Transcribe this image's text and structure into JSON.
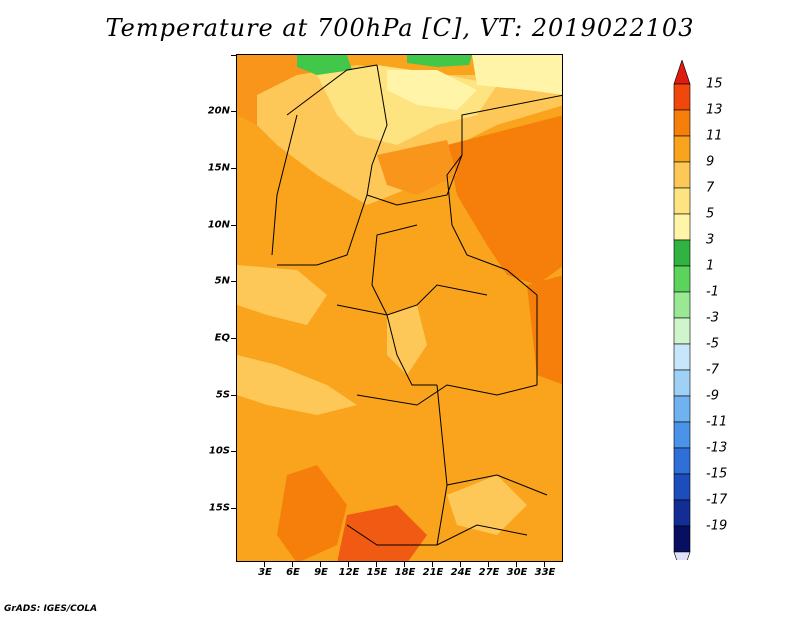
{
  "title": "Temperature at 700hPa [C], VT: 2019022103",
  "credit": "GrADS: IGES/COLA",
  "map": {
    "lat_labels": [
      "20N",
      "15N",
      "10N",
      "5N",
      "EQ",
      "5S",
      "10S",
      "15S"
    ],
    "lon_labels": [
      "3E",
      "6E",
      "9E",
      "12E",
      "15E",
      "18E",
      "21E",
      "24E",
      "27E",
      "30E",
      "33E"
    ],
    "field_colors": {
      "green": "#41c84a",
      "pale_yellow": "#fff4a8",
      "light_yellow": "#fee381",
      "light_orange": "#fdc857",
      "orange": "#f9a41c",
      "dark_orange": "#f67f0b",
      "red_orange": "#f05a12"
    }
  },
  "colorbar": {
    "labels": [
      "15",
      "13",
      "11",
      "9",
      "7",
      "5",
      "3",
      "1",
      "-1",
      "-3",
      "-5",
      "-7",
      "-9",
      "-11",
      "-13",
      "-15",
      "-17",
      "-19"
    ],
    "colors": [
      "#e01b10",
      "#f0480c",
      "#f67f0b",
      "#f9a41c",
      "#fdc857",
      "#fee381",
      "#fff4a8",
      "#30b340",
      "#5cd45c",
      "#9be894",
      "#d0f5cc",
      "#c8e6fa",
      "#9fd0f5",
      "#70b2ef",
      "#4a93e8",
      "#2f6fd8",
      "#1c4dbc",
      "#122e94",
      "#080e60",
      "#e0e0f8"
    ]
  }
}
